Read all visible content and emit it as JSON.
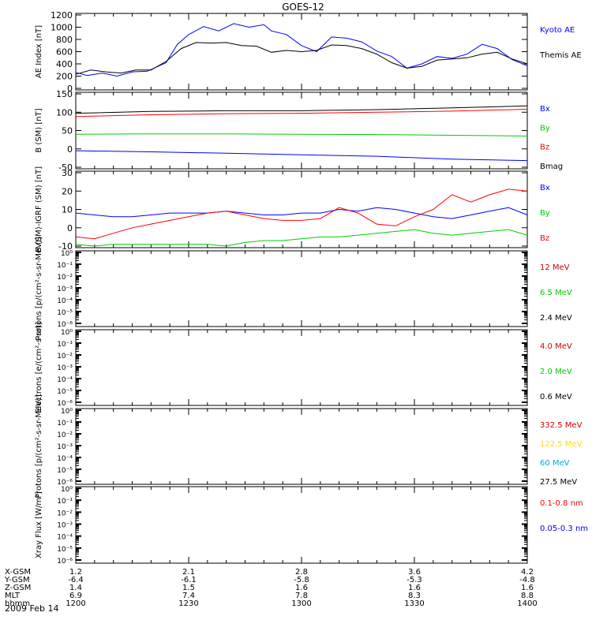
{
  "title": "GOES-12",
  "x_range": [
    "1200",
    "1400"
  ],
  "chart_data": [
    {
      "type": "line",
      "ylabel": "AE Index [nT]",
      "ylim": [
        0,
        1200
      ],
      "yticks": [
        0,
        200,
        400,
        600,
        800,
        1000,
        1200
      ],
      "ytick_labels": [
        "0",
        "200",
        "400",
        "600",
        "800",
        "1000",
        "1200"
      ],
      "series": [
        {
          "name": "Kyoto AE",
          "color": "#0000ff",
          "x": [
            "1200",
            "1203",
            "1207",
            "1211",
            "1215",
            "1219",
            "1224",
            "1227",
            "1230",
            "1234",
            "1238",
            "1242",
            "1246",
            "1250",
            "1252",
            "1256",
            "1300",
            "1304",
            "1308",
            "1312",
            "1316",
            "1320",
            "1324",
            "1328",
            "1332",
            "1336",
            "1340",
            "1344",
            "1348",
            "1352",
            "1356",
            "1400"
          ],
          "y": [
            260,
            210,
            250,
            200,
            270,
            280,
            420,
            720,
            880,
            1010,
            940,
            1060,
            1000,
            1040,
            940,
            880,
            700,
            600,
            840,
            820,
            760,
            610,
            520,
            330,
            400,
            520,
            490,
            560,
            720,
            650,
            470,
            370
          ]
        },
        {
          "name": "Themis AE",
          "color": "#000000",
          "x": [
            "1200",
            "1204",
            "1208",
            "1212",
            "1216",
            "1220",
            "1224",
            "1228",
            "1232",
            "1236",
            "1240",
            "1244",
            "1248",
            "1252",
            "1256",
            "1300",
            "1304",
            "1308",
            "1312",
            "1316",
            "1320",
            "1324",
            "1328",
            "1332",
            "1336",
            "1340",
            "1344",
            "1348",
            "1352",
            "1356",
            "1400"
          ],
          "y": [
            230,
            300,
            270,
            250,
            300,
            300,
            440,
            650,
            750,
            740,
            750,
            700,
            690,
            590,
            620,
            600,
            620,
            710,
            700,
            650,
            560,
            420,
            330,
            360,
            460,
            480,
            500,
            560,
            590,
            480,
            400
          ]
        }
      ]
    },
    {
      "type": "line",
      "ylabel": "B (SM) [nT]",
      "ylim": [
        -50,
        150
      ],
      "yticks": [
        -50,
        0,
        50,
        100,
        150
      ],
      "ytick_labels": [
        "-50",
        "0",
        "50",
        "100",
        "150"
      ],
      "series": [
        {
          "name": "Bx",
          "color": "#0000ff",
          "x": [
            "1200",
            "1220",
            "1240",
            "1300",
            "1320",
            "1340",
            "1400"
          ],
          "y": [
            -5,
            -8,
            -12,
            -16,
            -20,
            -28,
            -32
          ]
        },
        {
          "name": "By",
          "color": "#00cc00",
          "x": [
            "1200",
            "1220",
            "1240",
            "1300",
            "1320",
            "1340",
            "1400"
          ],
          "y": [
            40,
            41,
            41,
            40,
            39,
            37,
            35
          ]
        },
        {
          "name": "Bz",
          "color": "#ff0000",
          "x": [
            "1200",
            "1220",
            "1240",
            "1300",
            "1320",
            "1340",
            "1400"
          ],
          "y": [
            88,
            93,
            96,
            97,
            100,
            103,
            108
          ]
        },
        {
          "name": "Bmag",
          "color": "#000000",
          "x": [
            "1200",
            "1220",
            "1240",
            "1300",
            "1320",
            "1340",
            "1400"
          ],
          "y": [
            97,
            102,
            104,
            104,
            107,
            112,
            117
          ]
        }
      ]
    },
    {
      "type": "line",
      "ylabel": "B (SM)-IGRF (SM) [nT]",
      "ylim": [
        -10,
        30
      ],
      "yticks": [
        -10,
        0,
        10,
        20,
        30
      ],
      "ytick_labels": [
        "-10",
        "0",
        "10",
        "20",
        "30"
      ],
      "series": [
        {
          "name": "Bx",
          "color": "#0000ff",
          "x": [
            "1200",
            "1205",
            "1210",
            "1215",
            "1220",
            "1225",
            "1230",
            "1235",
            "1240",
            "1245",
            "1250",
            "1255",
            "1300",
            "1305",
            "1310",
            "1315",
            "1320",
            "1325",
            "1330",
            "1335",
            "1340",
            "1345",
            "1350",
            "1355",
            "1400"
          ],
          "y": [
            8,
            7,
            6,
            6,
            7,
            8,
            8,
            8,
            9,
            8,
            7,
            7,
            8,
            8,
            10,
            9,
            11,
            10,
            8,
            6,
            5,
            7,
            9,
            11,
            7
          ]
        },
        {
          "name": "By",
          "color": "#00cc00",
          "x": [
            "1200",
            "1205",
            "1210",
            "1215",
            "1220",
            "1225",
            "1230",
            "1235",
            "1240",
            "1245",
            "1250",
            "1255",
            "1300",
            "1305",
            "1310",
            "1315",
            "1320",
            "1325",
            "1330",
            "1335",
            "1340",
            "1345",
            "1350",
            "1355",
            "1400"
          ],
          "y": [
            -9,
            -10,
            -9,
            -9,
            -9,
            -9,
            -9,
            -9,
            -10,
            -8,
            -7,
            -7,
            -6,
            -5,
            -5,
            -4,
            -3,
            -2,
            -1,
            -3,
            -4,
            -3,
            -2,
            -1,
            -4
          ]
        },
        {
          "name": "Bz",
          "color": "#ff0000",
          "x": [
            "1200",
            "1205",
            "1210",
            "1215",
            "1220",
            "1225",
            "1230",
            "1235",
            "1240",
            "1245",
            "1250",
            "1255",
            "1300",
            "1305",
            "1310",
            "1315",
            "1320",
            "1325",
            "1330",
            "1335",
            "1340",
            "1345",
            "1350",
            "1355",
            "1400"
          ],
          "y": [
            -5,
            -6,
            -3,
            0,
            2,
            4,
            6,
            8,
            9,
            7,
            5,
            4,
            4,
            5,
            11,
            8,
            2,
            1,
            6,
            10,
            18,
            14,
            18,
            21,
            20
          ]
        }
      ]
    },
    {
      "type": "line",
      "ylabel": "Protons [p/(cm²-s-sr-MeV)]",
      "yscale": "log",
      "ytick_labels": [
        "10⁰",
        "10⁻¹",
        "10⁻²",
        "10⁻³",
        "10⁻⁴",
        "10⁻⁵",
        "10⁻⁶"
      ],
      "series": [
        {
          "name": "12 MeV",
          "color": "#cc0000"
        },
        {
          "name": "6.5 MeV",
          "color": "#00cc00"
        },
        {
          "name": "2.4 MeV",
          "color": "#000000"
        }
      ]
    },
    {
      "type": "line",
      "ylabel": "Electrons [e/(cm²-s-sr)]",
      "yscale": "log",
      "ytick_labels": [
        "10⁰",
        "10⁻¹",
        "10⁻²",
        "10⁻³",
        "10⁻⁴",
        "10⁻⁵",
        "10⁻⁶"
      ],
      "series": [
        {
          "name": "4.0 MeV",
          "color": "#cc0000"
        },
        {
          "name": "2.0 MeV",
          "color": "#00cc00"
        },
        {
          "name": "0.6 MeV",
          "color": "#000000"
        }
      ]
    },
    {
      "type": "line",
      "ylabel": "Protons [p/(cm²-s-sr-MeV)]",
      "yscale": "log",
      "ytick_labels": [
        "10⁰",
        "10⁻¹",
        "10⁻²",
        "10⁻³",
        "10⁻⁴",
        "10⁻⁵",
        "10⁻⁶"
      ],
      "series": [
        {
          "name": "332.5 MeV",
          "color": "#cc0000"
        },
        {
          "name": "122.5 MeV",
          "color": "#ffdd00"
        },
        {
          "name": "60 MeV",
          "color": "#00aadd"
        },
        {
          "name": "27.5 MeV",
          "color": "#000000"
        }
      ]
    },
    {
      "type": "line",
      "ylabel": "Xray Flux [W/m²]",
      "yscale": "log",
      "ytick_labels": [
        "10⁰",
        "10⁻¹",
        "10⁻²",
        "10⁻³",
        "10⁻⁴",
        "10⁻⁵",
        "10⁻⁶"
      ],
      "series": [
        {
          "name": "0.1-0.8 nm",
          "color": "#ff0000"
        },
        {
          "name": "0.05-0.3 nm",
          "color": "#0000ff"
        }
      ]
    }
  ],
  "footer": {
    "rows": [
      {
        "label": "X-GSM",
        "values": [
          "1.2",
          "2.1",
          "2.8",
          "3.6",
          "4.2"
        ]
      },
      {
        "label": "Y-GSM",
        "values": [
          "-6.4",
          "-6.1",
          "-5.8",
          "-5.3",
          "-4.8"
        ]
      },
      {
        "label": "Z-GSM",
        "values": [
          "1.4",
          "1.5",
          "1.6",
          "1.6",
          "1.6"
        ]
      },
      {
        "label": "MLT",
        "values": [
          "6.9",
          "7.4",
          "7.8",
          "8.3",
          "8.8"
        ]
      },
      {
        "label": "hhmm",
        "values": [
          "1200",
          "1230",
          "1300",
          "1330",
          "1400"
        ]
      }
    ],
    "date": "2009 Feb 14"
  }
}
